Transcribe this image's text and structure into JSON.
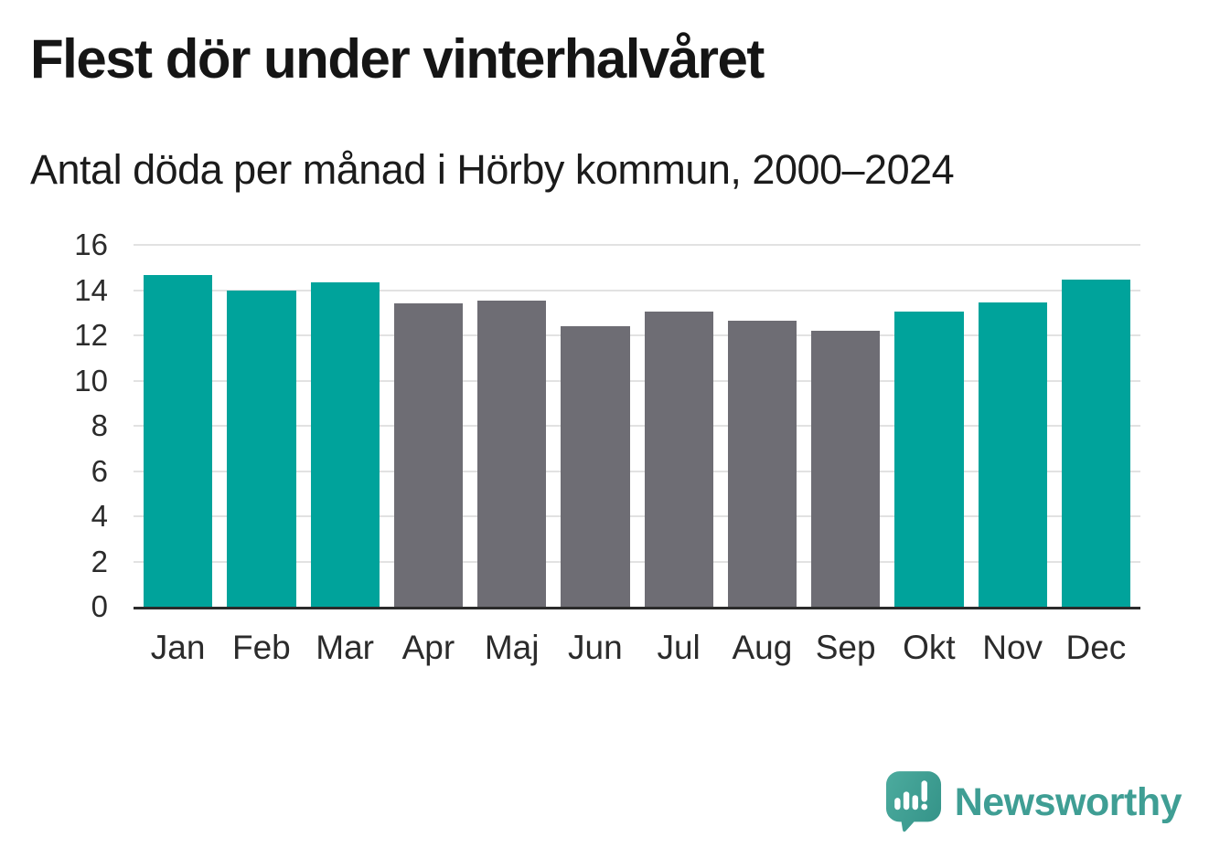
{
  "header": {
    "title": "Flest dör under vinterhalvåret",
    "subtitle": "Antal döda per månad i Hörby kommun, 2000–2024"
  },
  "chart_data": {
    "type": "bar",
    "title": "Flest dör under vinterhalvåret",
    "subtitle": "Antal döda per månad i Hörby kommun, 2000–2024",
    "categories": [
      "Jan",
      "Feb",
      "Mar",
      "Apr",
      "Maj",
      "Jun",
      "Jul",
      "Aug",
      "Sep",
      "Okt",
      "Nov",
      "Dec"
    ],
    "values": [
      14.65,
      14.0,
      14.35,
      13.4,
      13.55,
      12.4,
      13.05,
      12.65,
      12.2,
      13.05,
      13.45,
      14.45
    ],
    "bar_color_roles": [
      "winter",
      "winter",
      "winter",
      "summer",
      "summer",
      "summer",
      "summer",
      "summer",
      "summer",
      "winter",
      "winter",
      "winter"
    ],
    "colors": {
      "winter": "#00a39b",
      "summer": "#6e6d74"
    },
    "xlabel": "",
    "ylabel": "",
    "ylim": [
      0,
      16
    ],
    "yticks": [
      0,
      2,
      4,
      6,
      8,
      10,
      12,
      14,
      16
    ],
    "grid": true,
    "legend": false,
    "gridline_color": "#e2e2e2",
    "axis_line_color": "#2b2b2b"
  },
  "branding": {
    "logo_text": "Newsworthy",
    "logo_color": "#3f9e94",
    "logo_icon": "speech-bubble-bar-chart-icon"
  }
}
